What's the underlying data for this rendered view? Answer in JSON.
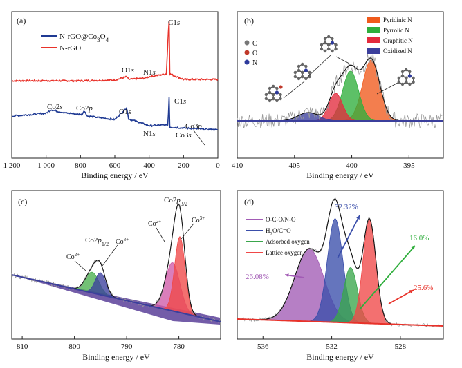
{
  "chart_data": [
    {
      "panel": "(a)",
      "type": "line",
      "xlabel": "Binding energy / eV",
      "ylabel": "",
      "xlim": [
        1200,
        0
      ],
      "xticks": [
        "1 200",
        "1 000",
        "800",
        "600",
        "400",
        "200",
        "0"
      ],
      "xtick_values": [
        1200,
        1000,
        800,
        600,
        400,
        200,
        0
      ],
      "legend": [
        "N-rGO@Co3O4",
        "N-rGO"
      ],
      "legend_html": [
        "N-rGO@Co<tspan baseline-shift=\"sub\" font-size=\"9\">3</tspan>O<tspan baseline-shift=\"sub\" font-size=\"9\">4</tspan>"
      ],
      "colors": [
        "#1f3a93",
        "#e8322a"
      ],
      "series": [
        {
          "name": "N-rGO",
          "values": [
            [
              1200,
              8
            ],
            [
              1000,
              8
            ],
            [
              800,
              8
            ],
            [
              600,
              9
            ],
            [
              531,
              14
            ],
            [
              520,
              10
            ],
            [
              420,
              12
            ],
            [
              399,
              14
            ],
            [
              300,
              18
            ],
            [
              285,
              96
            ],
            [
              280,
              18
            ],
            [
              200,
              10
            ],
            [
              0,
              10
            ]
          ]
        },
        {
          "name": "N-rGO@Co3O4",
          "values": [
            [
              1200,
              10
            ],
            [
              1000,
              14
            ],
            [
              970,
              19
            ],
            [
              900,
              15
            ],
            [
              790,
              12
            ],
            [
              780,
              18
            ],
            [
              760,
              10
            ],
            [
              700,
              8
            ],
            [
              600,
              5
            ],
            [
              531,
              22
            ],
            [
              520,
              6
            ],
            [
              400,
              -4
            ],
            [
              290,
              -3
            ],
            [
              285,
              38
            ],
            [
              280,
              -6
            ],
            [
              100,
              -9
            ],
            [
              0,
              -10
            ]
          ]
        }
      ],
      "annotations": [
        "C1s",
        "O1s",
        "N1s",
        "C1s",
        "O1s",
        "N1s",
        "Co2s",
        "Co2p",
        "Co3s",
        "Co3p"
      ]
    },
    {
      "panel": "(b)",
      "type": "area",
      "xlabel": "Binding energy / eV",
      "xlim": [
        410,
        392
      ],
      "xticks": [
        "410",
        "405",
        "400",
        "395"
      ],
      "xtick_values": [
        410,
        405,
        400,
        395
      ],
      "legend": [
        "Pyridinic N",
        "Pyrrolic N",
        "Graphitic N",
        "Oxidized N"
      ],
      "atom_legend": [
        "C",
        "O",
        "N"
      ],
      "series": [
        {
          "name": "Pyridinic N",
          "center": 398.3,
          "height": 88,
          "color": "#f05a1c"
        },
        {
          "name": "Pyrrolic N",
          "center": 400.1,
          "height": 72,
          "color": "#2fae3c"
        },
        {
          "name": "Graphitic N",
          "center": 401.4,
          "height": 40,
          "color": "#e32b3d"
        },
        {
          "name": "Oxidized N",
          "center": 403.8,
          "height": 12,
          "color": "#3b3f9c"
        }
      ]
    },
    {
      "panel": "(c)",
      "type": "area",
      "xlabel": "Binding energy / eV",
      "xlim": [
        812,
        772
      ],
      "xticks": [
        "810",
        "800",
        "790",
        "780"
      ],
      "xtick_values": [
        810,
        800,
        790,
        780
      ],
      "annotations": [
        "Co2p3/2",
        "Co2p1/2",
        "Co2+",
        "Co3+",
        "Co2+",
        "Co3+"
      ],
      "annotations_html": [
        "Co2<tspan font-style=\"italic\">p</tspan><tspan baseline-shift=\"sub\" font-size=\"8\">3/2</tspan>",
        "Co2<tspan font-style=\"italic\">p</tspan><tspan baseline-shift=\"sub\" font-size=\"8\">1/2</tspan>",
        "Co<tspan baseline-shift=\"super\" font-size=\"8\">2+</tspan>",
        "Co<tspan baseline-shift=\"super\" font-size=\"8\">3+</tspan>"
      ],
      "series": [
        {
          "name": "Co2+ 2p1/2",
          "center": 796.6,
          "height": 30,
          "color": "#4caf50"
        },
        {
          "name": "Co3+ 2p1/2",
          "center": 795.0,
          "height": 32,
          "color": "#3b3f9c"
        },
        {
          "name": "Co2+ 2p3/2",
          "center": 781.2,
          "height": 70,
          "color": "#d05aa8"
        },
        {
          "name": "Co3+ 2p3/2",
          "center": 779.8,
          "height": 110,
          "color": "#f04848"
        }
      ]
    },
    {
      "panel": "(d)",
      "type": "area",
      "xlabel": "Binding energy / eV",
      "xlim": [
        537.5,
        525.5
      ],
      "xticks": [
        "536",
        "532",
        "528"
      ],
      "xtick_values": [
        536,
        532,
        528
      ],
      "legend": [
        "O-C-O/N-O",
        "H2O/C=O",
        "Adsorbed oxygen",
        "Lattice oxygen"
      ],
      "legend_html": [
        "O-C-O/N-O",
        "H<tspan baseline-shift=\"sub\" font-size=\"7\">2</tspan>O/C=O",
        "Adsorbed oxygen",
        "Lattice oxygen"
      ],
      "percent_labels": [
        "32.32%",
        "16.0%",
        "26.08%",
        "25.6%"
      ],
      "series": [
        {
          "name": "O-C-O/N-O",
          "center": 533.3,
          "height": 105,
          "color": "#a25bb5",
          "percent": "26.08%"
        },
        {
          "name": "H2O/C=O",
          "center": 531.8,
          "height": 150,
          "color": "#3a4eaa",
          "percent": "32.32%"
        },
        {
          "name": "Adsorbed oxygen",
          "center": 530.9,
          "height": 80,
          "color": "#3aa64c",
          "percent": "16.0%"
        },
        {
          "name": "Lattice oxygen",
          "center": 529.8,
          "height": 150,
          "color": "#f04848",
          "percent": "25.6%"
        }
      ]
    }
  ]
}
